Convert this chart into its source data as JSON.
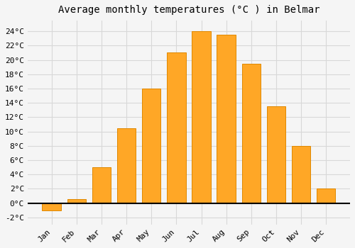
{
  "title": "Average monthly temperatures (°C ) in Belmar",
  "months": [
    "Jan",
    "Feb",
    "Mar",
    "Apr",
    "May",
    "Jun",
    "Jul",
    "Aug",
    "Sep",
    "Oct",
    "Nov",
    "Dec"
  ],
  "values": [
    -1.0,
    0.5,
    5.0,
    10.5,
    16.0,
    21.0,
    24.0,
    23.5,
    19.5,
    13.5,
    8.0,
    2.0
  ],
  "bar_color": "#FFA726",
  "bar_edge_color": "#E08800",
  "ylim": [
    -3,
    25.5
  ],
  "yticks": [
    -2,
    0,
    2,
    4,
    6,
    8,
    10,
    12,
    14,
    16,
    18,
    20,
    22,
    24
  ],
  "background_color": "#F5F5F5",
  "grid_color": "#D8D8D8",
  "title_fontsize": 10,
  "tick_fontsize": 8,
  "font_family": "monospace"
}
